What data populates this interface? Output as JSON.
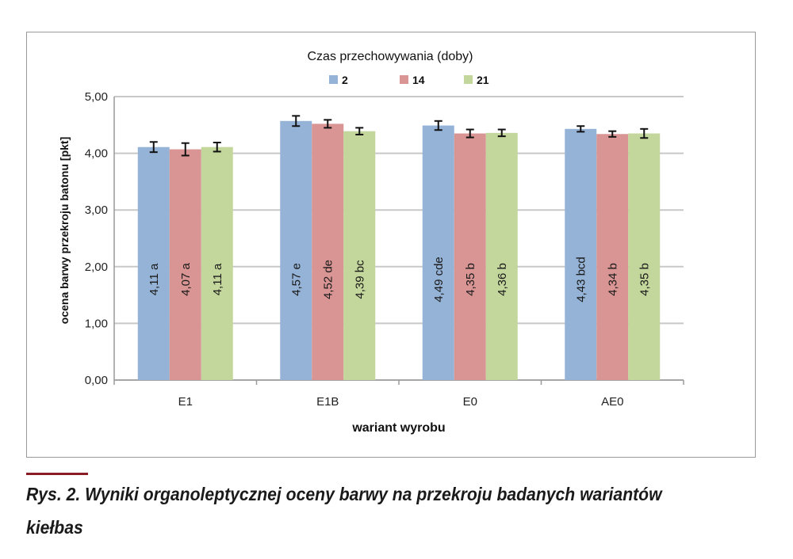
{
  "caption": "Rys. 2. Wyniki organoleptycznej oceny barwy na przekroju badanych wariantów kiełbas",
  "chart_data": {
    "type": "bar",
    "legend_title": "Czas przechowywania (doby)",
    "legend_position": "top",
    "xlabel": "wariant wyrobu",
    "ylabel": "ocena barwy przekroju batonu [pkt]",
    "ylim": [
      0,
      5
    ],
    "yticks": [
      "0,00",
      "1,00",
      "2,00",
      "3,00",
      "4,00",
      "5,00"
    ],
    "grid": true,
    "categories": [
      "E1",
      "E1B",
      "E0",
      "AE0"
    ],
    "series": [
      {
        "name": "2",
        "color": "#95b3d7",
        "values": [
          4.11,
          4.57,
          4.49,
          4.43
        ],
        "errors": [
          0.09,
          0.09,
          0.08,
          0.05
        ],
        "labels": [
          "4,11  a",
          "4,57  e",
          "4,49  cde",
          "4,43  bcd"
        ]
      },
      {
        "name": "14",
        "color": "#d99594",
        "values": [
          4.07,
          4.52,
          4.35,
          4.34
        ],
        "errors": [
          0.11,
          0.07,
          0.07,
          0.05
        ],
        "labels": [
          "4,07  a",
          "4,52  de",
          "4,35  b",
          "4,34  b"
        ]
      },
      {
        "name": "21",
        "color": "#c3d69b",
        "values": [
          4.11,
          4.39,
          4.36,
          4.35
        ],
        "errors": [
          0.08,
          0.06,
          0.06,
          0.08
        ],
        "labels": [
          "4,11  a",
          "4,39  bc",
          "4,36  b",
          "4,35  b"
        ]
      }
    ]
  }
}
